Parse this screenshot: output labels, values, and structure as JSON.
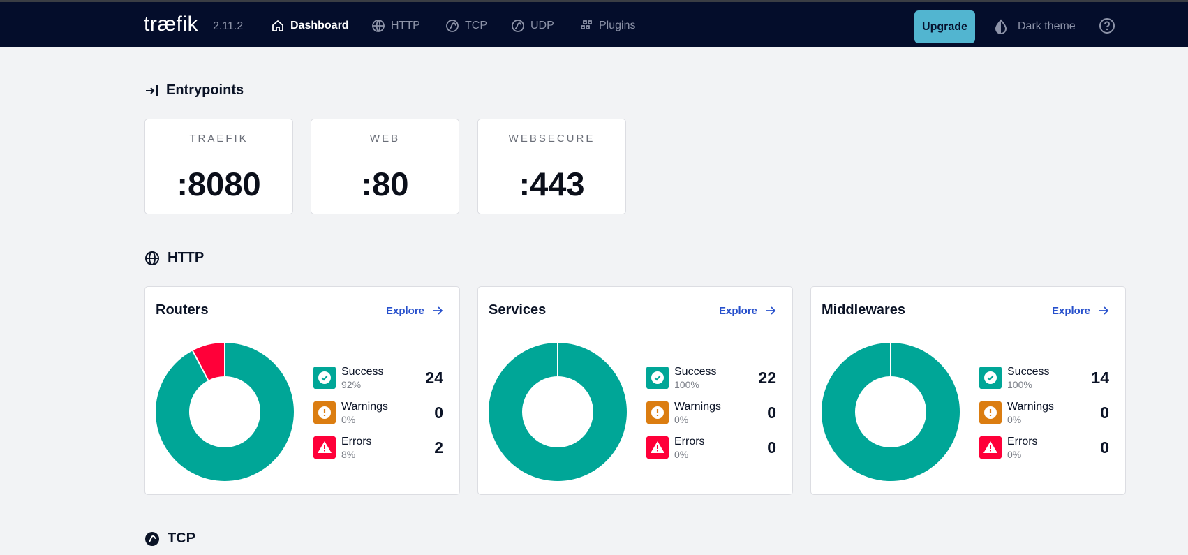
{
  "nav": {
    "logo": "træfik",
    "version": "2.11.2",
    "items": [
      "Dashboard",
      "HTTP",
      "TCP",
      "UDP",
      "Plugins"
    ],
    "upgrade": "Upgrade",
    "theme": "Dark theme"
  },
  "entrypoints": {
    "title": "Entrypoints",
    "items": [
      {
        "name": "TRAEFIK",
        "address": ":8080"
      },
      {
        "name": "WEB",
        "address": ":80"
      },
      {
        "name": "WEBSECURE",
        "address": ":443"
      }
    ]
  },
  "http": {
    "title": "HTTP",
    "cards": [
      {
        "title": "Routers",
        "explore": "Explore",
        "stats": [
          {
            "label": "Success",
            "percent": "92%",
            "count": 24
          },
          {
            "label": "Warnings",
            "percent": "0%",
            "count": 0
          },
          {
            "label": "Errors",
            "percent": "8%",
            "count": 2
          }
        ]
      },
      {
        "title": "Services",
        "explore": "Explore",
        "stats": [
          {
            "label": "Success",
            "percent": "100%",
            "count": 22
          },
          {
            "label": "Warnings",
            "percent": "0%",
            "count": 0
          },
          {
            "label": "Errors",
            "percent": "0%",
            "count": 0
          }
        ]
      },
      {
        "title": "Middlewares",
        "explore": "Explore",
        "stats": [
          {
            "label": "Success",
            "percent": "100%",
            "count": 14
          },
          {
            "label": "Warnings",
            "percent": "0%",
            "count": 0
          },
          {
            "label": "Errors",
            "percent": "0%",
            "count": 0
          }
        ]
      }
    ]
  },
  "tcp": {
    "title": "TCP"
  }
}
